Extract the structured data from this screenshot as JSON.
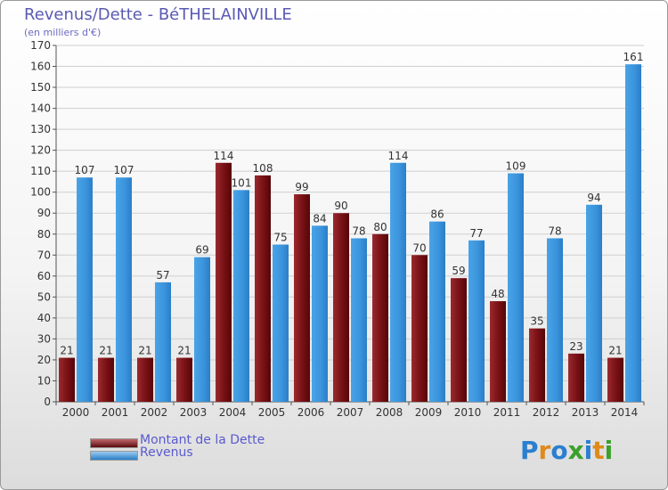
{
  "title": "Revenus/Dette - BéTHELAINVILLE",
  "subtitle": "(en milliers d'€)",
  "chart_data": {
    "type": "bar",
    "categories": [
      "2000",
      "2001",
      "2002",
      "2003",
      "2004",
      "2005",
      "2006",
      "2007",
      "2008",
      "2009",
      "2010",
      "2011",
      "2012",
      "2013",
      "2014"
    ],
    "series": [
      {
        "name": "Montant de la Dette",
        "color": "#7a0f14",
        "values": [
          21,
          21,
          21,
          21,
          114,
          108,
          99,
          90,
          80,
          70,
          59,
          48,
          35,
          23,
          21
        ]
      },
      {
        "name": "Revenus",
        "color": "#3b95dd",
        "values": [
          107,
          107,
          57,
          69,
          101,
          75,
          84,
          78,
          114,
          86,
          77,
          109,
          78,
          94,
          161
        ]
      }
    ],
    "ylim": [
      0,
      170
    ],
    "yticks": [
      0,
      10,
      20,
      30,
      40,
      50,
      60,
      70,
      80,
      90,
      100,
      110,
      120,
      130,
      140,
      150,
      160,
      170
    ],
    "grid": true
  },
  "legend": {
    "debt_label": "Montant de la Dette",
    "revenue_label": "Revenus"
  },
  "logo": {
    "letters": [
      "P",
      "r",
      "o",
      "x",
      "i",
      "t",
      "i"
    ],
    "colors": [
      "#2a7fd0",
      "#e08a1a",
      "#2a7fd0",
      "#3aa02a",
      "#2a7fd0",
      "#e08a1a",
      "#3aa02a"
    ]
  }
}
